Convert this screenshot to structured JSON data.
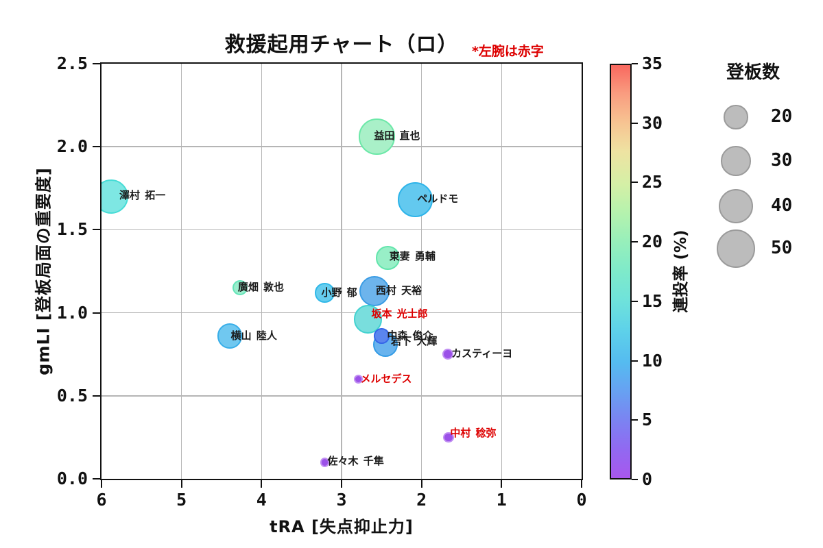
{
  "title": {
    "text": "救援起用チャート（ロ）",
    "annotation": "*左腕は赤字",
    "annotation_color": "#dd0000"
  },
  "chart_data": {
    "type": "scatter",
    "title": "救援起用チャート（ロ）",
    "note": "*左腕は赤字 (left-handed pitchers labeled in red)",
    "grid": true,
    "x_axis": {
      "label": "tRA [失点抑止力]",
      "ticks": [
        "6",
        "5",
        "4",
        "3",
        "2",
        "1",
        "0"
      ],
      "range": [
        6,
        0
      ],
      "reversed": true
    },
    "y_axis": {
      "label": "gmLI [登板局面の重要度]",
      "ticks": [
        "0.0",
        "0.5",
        "1.0",
        "1.5",
        "2.0",
        "2.5"
      ],
      "range": [
        0,
        2.5
      ]
    },
    "colorbar": {
      "label": "連投率 (%)",
      "ticks": [
        "0",
        "5",
        "10",
        "15",
        "20",
        "25",
        "30",
        "35"
      ],
      "range": [
        0,
        35
      ],
      "gradient": [
        {
          "pct": 0,
          "color": "#a857ee"
        },
        {
          "pct": 7,
          "color": "#9169f1"
        },
        {
          "pct": 14,
          "color": "#7b83f2"
        },
        {
          "pct": 21,
          "color": "#67a1f2"
        },
        {
          "pct": 28,
          "color": "#55bbf0"
        },
        {
          "pct": 36,
          "color": "#5ed2e9"
        },
        {
          "pct": 43,
          "color": "#6fe2db"
        },
        {
          "pct": 50,
          "color": "#7eeaca"
        },
        {
          "pct": 57,
          "color": "#96efbb"
        },
        {
          "pct": 64,
          "color": "#b4f2ae"
        },
        {
          "pct": 71,
          "color": "#d4f0a6"
        },
        {
          "pct": 79,
          "color": "#eee3a2"
        },
        {
          "pct": 86,
          "color": "#f7c492"
        },
        {
          "pct": 93,
          "color": "#f99d80"
        },
        {
          "pct": 100,
          "color": "#f9685f"
        }
      ]
    },
    "size_legend": {
      "title": "登板数",
      "entries": [
        20,
        30,
        40,
        50
      ]
    },
    "series": [
      {
        "name": "澤村 拓一",
        "tRA": 5.88,
        "gmLI": 1.7,
        "appearances": 41,
        "renzoku_pct": 13,
        "fill": "#7ee7e3",
        "edge": "#46dcd6",
        "label_color": "#1a1a1a",
        "dx": 12,
        "dy": -11
      },
      {
        "name": "益田 直也",
        "tRA": 2.56,
        "gmLI": 2.06,
        "appearances": 44,
        "renzoku_pct": 19,
        "fill": "#a9f0c8",
        "edge": "#6ce8a8",
        "label_color": "#1a1a1a",
        "dx": -4,
        "dy": -11
      },
      {
        "name": "ペルドモ",
        "tRA": 2.08,
        "gmLI": 1.68,
        "appearances": 41,
        "renzoku_pct": 9,
        "fill": "#63c9ef",
        "edge": "#2eb4e9",
        "label_color": "#1a1a1a",
        "dx": 3,
        "dy": -11
      },
      {
        "name": "東妻 勇輔",
        "tRA": 2.42,
        "gmLI": 1.33,
        "appearances": 19,
        "renzoku_pct": 18,
        "fill": "#98efc7",
        "edge": "#62e5ac",
        "label_color": "#1a1a1a",
        "dx": 2,
        "dy": -12
      },
      {
        "name": "廣畑 敦也",
        "tRA": 4.27,
        "gmLI": 1.15,
        "appearances": 8,
        "renzoku_pct": 16,
        "fill": "#9aeecd",
        "edge": "#64e4b8",
        "label_color": "#1a1a1a",
        "dx": -3,
        "dy": -10
      },
      {
        "name": "小野 郁",
        "tRA": 3.21,
        "gmLI": 1.12,
        "appearances": 13,
        "renzoku_pct": 9,
        "fill": "#66cdee",
        "edge": "#30b8e8",
        "label_color": "#1a1a1a",
        "dx": -5,
        "dy": -10
      },
      {
        "name": "西村 天裕",
        "tRA": 2.59,
        "gmLI": 1.13,
        "appearances": 31,
        "renzoku_pct": 7,
        "fill": "#6db4ec",
        "edge": "#3a9ce4",
        "label_color": "#1a1a1a",
        "dx": 2,
        "dy": -10
      },
      {
        "name": "坂本 光士郎",
        "tRA": 2.67,
        "gmLI": 0.96,
        "appearances": 28,
        "renzoku_pct": 12,
        "fill": "#79dedd",
        "edge": "#42d2d0",
        "label_color": "#dd0000",
        "dx": 5,
        "dy": -17
      },
      {
        "name": "横山 陸人",
        "tRA": 4.4,
        "gmLI": 0.86,
        "appearances": 21,
        "renzoku_pct": 8,
        "fill": "#70c8f0",
        "edge": "#38aee8",
        "label_color": "#1a1a1a",
        "dx": 2,
        "dy": -10
      },
      {
        "name": "岩下 大輝",
        "tRA": 2.45,
        "gmLI": 0.81,
        "appearances": 21,
        "renzoku_pct": 7,
        "fill": "#68b3ee",
        "edge": "#349ce6",
        "label_color": "#1a1a1a",
        "dx": 8,
        "dy": -14
      },
      {
        "name": "中森 俊介",
        "tRA": 2.5,
        "gmLI": 0.86,
        "appearances": 8,
        "renzoku_pct": 4,
        "fill": "#5b85ee",
        "edge": "#3465e8",
        "label_color": "#1a1a1a",
        "dx": 8,
        "dy": -10
      },
      {
        "name": "カスティーヨ",
        "tRA": 1.67,
        "gmLI": 0.75,
        "appearances": 4,
        "renzoku_pct": 1,
        "fill": "#9b51e8",
        "edge": "#c08ef2",
        "label_color": "#1a1a1a",
        "dx": 5,
        "dy": -10
      },
      {
        "name": "メルセデス",
        "tRA": 2.79,
        "gmLI": 0.6,
        "appearances": 3,
        "renzoku_pct": 1,
        "fill": "#9b51e8",
        "edge": "#c08ef2",
        "label_color": "#dd0000",
        "dx": 3,
        "dy": -10
      },
      {
        "name": "中村 稔弥",
        "tRA": 1.66,
        "gmLI": 0.25,
        "appearances": 4,
        "renzoku_pct": 1,
        "fill": "#9b51e8",
        "edge": "#c08ef2",
        "label_color": "#dd0000",
        "dx": 2,
        "dy": -15
      },
      {
        "name": "佐々木 千隼",
        "tRA": 3.21,
        "gmLI": 0.1,
        "appearances": 3,
        "renzoku_pct": 2,
        "fill": "#9b51e8",
        "edge": "#c08ef2",
        "label_color": "#1a1a1a",
        "dx": 4,
        "dy": -11
      }
    ]
  }
}
